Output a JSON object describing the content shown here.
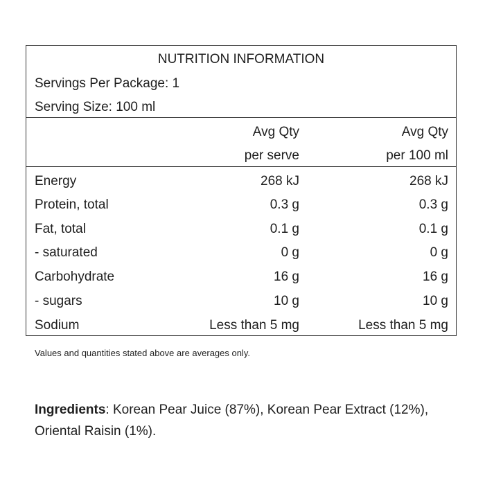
{
  "title": "NUTRITION INFORMATION",
  "servings_per_package": "Servings Per Package: 1",
  "serving_size": "Serving Size: 100 ml",
  "columns": [
    {
      "line1": "Avg Qty",
      "line2": "per serve"
    },
    {
      "line1": "Avg Qty",
      "line2": "per 100 ml"
    }
  ],
  "rows": [
    {
      "label": "Energy",
      "per_serve": "268 kJ",
      "per_100ml": "268 kJ"
    },
    {
      "label": "Protein, total",
      "per_serve": "0.3 g",
      "per_100ml": "0.3 g"
    },
    {
      "label": "Fat, total",
      "per_serve": "0.1 g",
      "per_100ml": "0.1 g"
    },
    {
      "label": "- saturated",
      "per_serve": "0 g",
      "per_100ml": "0 g"
    },
    {
      "label": "Carbohydrate",
      "per_serve": "16 g",
      "per_100ml": "16 g"
    },
    {
      "label": "- sugars",
      "per_serve": "10 g",
      "per_100ml": "10 g"
    },
    {
      "label": "Sodium",
      "per_serve": "Less than 5 mg",
      "per_100ml": "Less than 5 mg"
    }
  ],
  "footnote": "Values and quantities stated above are averages only.",
  "ingredients": {
    "heading": "Ingredients",
    "text": ": Korean Pear Juice (87%), Korean Pear Extract (12%), Oriental Raisin (1%)."
  }
}
